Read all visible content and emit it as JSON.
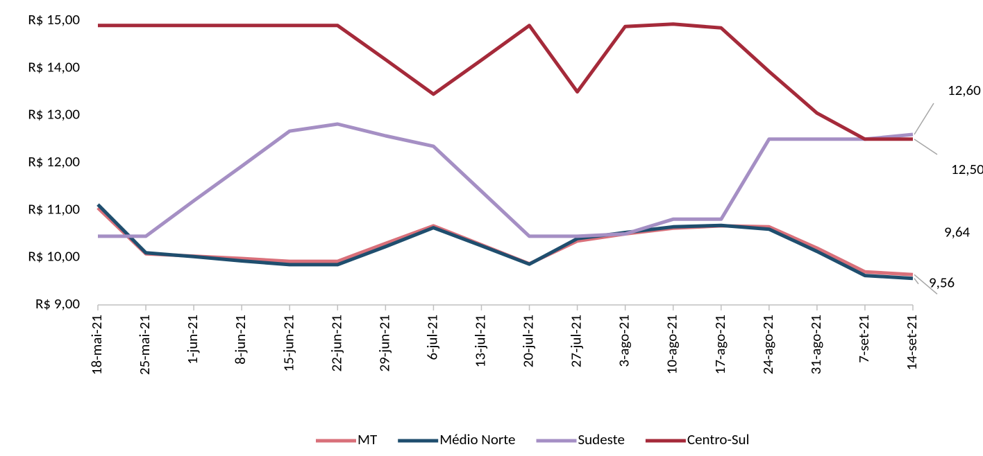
{
  "chart_data": {
    "type": "line",
    "categories": [
      "18-mai-21",
      "25-mai-21",
      "1-jun-21",
      "8-jun-21",
      "15-jun-21",
      "22-jun-21",
      "29-jun-21",
      "6-jul-21",
      "13-jul-21",
      "20-jul-21",
      "27-jul-21",
      "3-ago-21",
      "10-ago-21",
      "17-ago-21",
      "24-ago-21",
      "31-ago-21",
      "7-set-21",
      "14-set-21"
    ],
    "series": [
      {
        "name": "MT",
        "color": "#d9707a",
        "values": [
          11.05,
          10.08,
          10.03,
          9.98,
          9.92,
          9.92,
          10.3,
          10.67,
          10.27,
          9.87,
          10.35,
          10.5,
          10.62,
          10.67,
          10.65,
          10.2,
          9.7,
          9.64
        ],
        "value_labels": [
          null,
          null,
          null,
          null,
          null,
          null,
          null,
          null,
          null,
          null,
          null,
          null,
          null,
          null,
          null,
          null,
          null,
          "9,64"
        ]
      },
      {
        "name": "Médio Norte",
        "color": "#1f4e6e",
        "values": [
          11.12,
          10.1,
          10.02,
          9.93,
          9.85,
          9.85,
          10.23,
          10.63,
          10.25,
          9.86,
          10.4,
          10.53,
          10.65,
          10.68,
          10.6,
          10.13,
          9.62,
          9.56
        ],
        "value_labels": [
          null,
          null,
          null,
          null,
          null,
          null,
          null,
          null,
          null,
          null,
          null,
          null,
          null,
          null,
          null,
          null,
          null,
          "9,56"
        ]
      },
      {
        "name": "Sudeste",
        "color": "#a58fc4",
        "values": [
          10.45,
          10.45,
          11.2,
          11.93,
          12.67,
          12.82,
          12.57,
          12.35,
          11.4,
          10.45,
          10.45,
          10.5,
          10.81,
          10.81,
          12.5,
          12.5,
          12.5,
          12.6
        ],
        "value_labels": [
          null,
          null,
          null,
          null,
          null,
          null,
          null,
          null,
          null,
          null,
          null,
          null,
          null,
          null,
          null,
          null,
          null,
          "12,60"
        ]
      },
      {
        "name": "Centro-Sul",
        "color": "#a52a3a",
        "values": [
          14.9,
          14.9,
          14.9,
          14.9,
          14.9,
          14.9,
          14.18,
          13.45,
          14.17,
          14.9,
          13.5,
          14.88,
          14.93,
          14.85,
          13.93,
          13.05,
          12.5,
          12.5
        ],
        "value_labels": [
          null,
          null,
          null,
          null,
          null,
          null,
          null,
          null,
          null,
          null,
          null,
          null,
          null,
          null,
          null,
          null,
          null,
          "12,50"
        ]
      }
    ],
    "ylim": [
      9,
      15
    ],
    "yticks": [
      {
        "value": 9,
        "label": "R$ 9,00"
      },
      {
        "value": 10,
        "label": "R$ 10,00"
      },
      {
        "value": 11,
        "label": "R$ 11,00"
      },
      {
        "value": 12,
        "label": "R$ 12,00"
      },
      {
        "value": 13,
        "label": "R$ 13,00"
      },
      {
        "value": 14,
        "label": "R$ 14,00"
      },
      {
        "value": 15,
        "label": "R$ 15,00"
      }
    ],
    "grid": false,
    "legend": "bottom"
  }
}
